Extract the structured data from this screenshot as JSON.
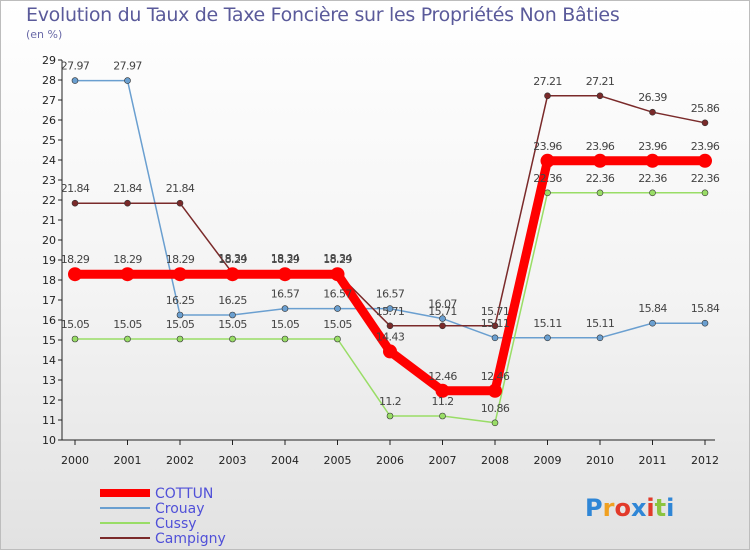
{
  "title": "Evolution du Taux de Taxe Foncière sur les Propriétés Non Bâties",
  "subtitle": "(en %)",
  "logo": {
    "text": "Proxiti",
    "colors": [
      "#2f86d6",
      "#f0a020",
      "#e23a2a",
      "#2f86d6",
      "#e23a2a",
      "#8bc43f",
      "#2f86d6"
    ]
  },
  "chart_data": {
    "type": "line",
    "x": [
      "2000",
      "2001",
      "2002",
      "2003",
      "2004",
      "2005",
      "2006",
      "2007",
      "2008",
      "2009",
      "2010",
      "2011",
      "2012"
    ],
    "ylim": [
      10,
      29
    ],
    "yticks": [
      "10",
      "11",
      "12",
      "13",
      "14",
      "15",
      "16",
      "17",
      "18",
      "19",
      "20",
      "21",
      "22",
      "23",
      "24",
      "25",
      "26",
      "27",
      "28",
      "29"
    ],
    "grid": false,
    "legend": "bottom-left",
    "series": [
      {
        "name": "COTTUN",
        "color": "#ff0000",
        "values": [
          18.29,
          18.29,
          18.29,
          18.29,
          18.29,
          18.29,
          14.43,
          12.46,
          12.46,
          23.96,
          23.96,
          23.96,
          23.96
        ],
        "labels": [
          "18.29",
          "18.29",
          "18.29",
          "18.29",
          "18.29",
          "18.29",
          "14.43",
          "12.46",
          "12.46",
          "23.96",
          "23.96",
          "23.96",
          "23.96"
        ]
      },
      {
        "name": "Crouay",
        "color": "#6a9fd0",
        "values": [
          27.97,
          27.97,
          16.25,
          16.25,
          16.57,
          16.57,
          16.57,
          16.07,
          15.11,
          15.11,
          15.11,
          15.84,
          15.84
        ],
        "labels": [
          "27.97",
          "27.97",
          "16.25",
          "16.25",
          "16.57",
          "16.57",
          "16.57",
          "16.07",
          "15.11",
          "15.11",
          "15.11",
          "15.84",
          "15.84"
        ]
      },
      {
        "name": "Cussy",
        "color": "#99dd66",
        "values": [
          15.05,
          15.05,
          15.05,
          15.05,
          15.05,
          15.05,
          11.2,
          11.2,
          10.86,
          22.36,
          22.36,
          22.36,
          22.36
        ],
        "labels": [
          "15.05",
          "15.05",
          "15.05",
          "15.05",
          "15.05",
          "15.05",
          "11.2",
          "11.2",
          "10.86",
          "22.36",
          "22.36",
          "22.36",
          "22.36"
        ]
      },
      {
        "name": "Campigny",
        "color": "#7a2a2a",
        "values": [
          21.84,
          21.84,
          21.84,
          18.34,
          18.34,
          18.34,
          15.71,
          15.71,
          15.71,
          27.21,
          27.21,
          26.39,
          25.86
        ],
        "labels": [
          "21.84",
          "21.84",
          "21.84",
          "18.34",
          "18.34",
          "18.34",
          "15.71",
          "15.71",
          "15.71",
          "27.21",
          "27.21",
          "26.39",
          "25.86"
        ]
      }
    ]
  }
}
